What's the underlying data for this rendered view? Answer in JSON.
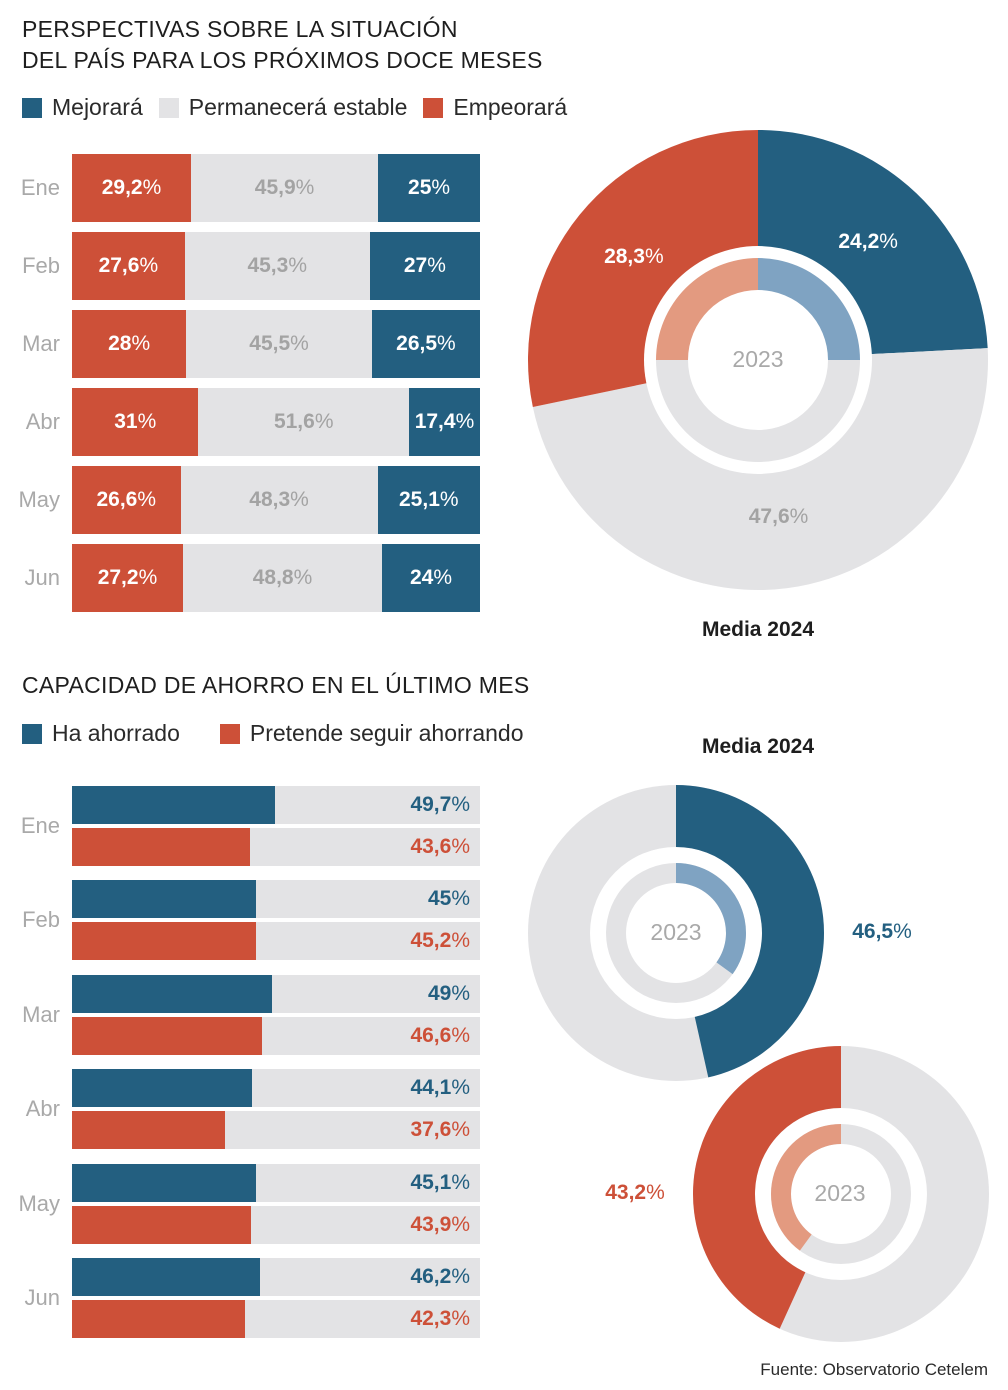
{
  "colors": {
    "blue": "#235f80",
    "red": "#cd5038",
    "grey": "#e3e3e5",
    "light_blue": "#7fa3c2",
    "light_red": "#e39a80",
    "label_grey": "#a3a3a3"
  },
  "section1": {
    "title_line1": "PERSPECTIVAS SOBRE LA SITUACIÓN",
    "title_line2": "DEL PAÍS PARA LOS PRÓXIMOS DOCE MESES",
    "legend": [
      "Mejorará",
      "Permanecerá estable",
      "Empeorará"
    ],
    "donut_media_label": "Media 2024",
    "donut_center_label": "2023"
  },
  "section2": {
    "title": "CAPACIDAD DE AHORRO EN EL ÚLTIMO MES",
    "legend": [
      "Ha ahorrado",
      "Pretende seguir ahorrando"
    ],
    "donut_media_label": "Media 2024",
    "donut_center_label": "2023"
  },
  "source": "Fuente: Observatorio Cetelem",
  "chart_data": [
    {
      "type": "bar",
      "stacked": true,
      "orientation": "horizontal",
      "title": "PERSPECTIVAS SOBRE LA SITUACIÓN DEL PAÍS PARA LOS PRÓXIMOS DOCE MESES",
      "categories": [
        "Ene",
        "Feb",
        "Mar",
        "Abr",
        "May",
        "Jun"
      ],
      "series": [
        {
          "name": "Empeorará",
          "values": [
            29.2,
            27.6,
            28,
            31,
            26.6,
            27.2
          ],
          "labels": [
            "29,2",
            "27,6",
            "28",
            "31",
            "26,6",
            "27,2"
          ]
        },
        {
          "name": "Permanecerá estable",
          "values": [
            45.9,
            45.3,
            45.5,
            51.6,
            48.3,
            48.8
          ],
          "labels": [
            "45,9",
            "45,3",
            "45,5",
            "51,6",
            "48,3",
            "48,8"
          ]
        },
        {
          "name": "Mejorará",
          "values": [
            25,
            27,
            26.5,
            17.4,
            25.1,
            24
          ],
          "labels": [
            "25",
            "27",
            "26,5",
            "17,4",
            "25,1",
            "24"
          ]
        }
      ],
      "unit": "%"
    },
    {
      "type": "pie",
      "title": "Media 2024",
      "slices": [
        {
          "name": "Mejorará",
          "value": 24.2,
          "label": "24,2"
        },
        {
          "name": "Permanecerá estable",
          "value": 47.6,
          "label": "47,6"
        },
        {
          "name": "Empeorará",
          "value": 28.3,
          "label": "28,3"
        }
      ],
      "inner_ring_2023": [
        {
          "name": "Mejorará",
          "value": 25
        },
        {
          "name": "Permanecerá estable",
          "value": 50
        },
        {
          "name": "Empeorará",
          "value": 25
        }
      ],
      "unit": "%"
    },
    {
      "type": "bar",
      "orientation": "horizontal",
      "title": "CAPACIDAD DE AHORRO EN EL ÚLTIMO MES",
      "categories": [
        "Ene",
        "Feb",
        "Mar",
        "Abr",
        "May",
        "Jun"
      ],
      "series": [
        {
          "name": "Ha ahorrado",
          "values": [
            49.7,
            45,
            49,
            44.1,
            45.1,
            46.2
          ],
          "labels": [
            "49,7",
            "45",
            "49",
            "44,1",
            "45,1",
            "46,2"
          ]
        },
        {
          "name": "Pretende seguir ahorrando",
          "values": [
            43.6,
            45.2,
            46.6,
            37.6,
            43.9,
            42.3
          ],
          "labels": [
            "43,6",
            "45,2",
            "46,6",
            "37,6",
            "43,9",
            "42,3"
          ]
        }
      ],
      "xlim": [
        0,
        100
      ],
      "unit": "%"
    },
    {
      "type": "pie",
      "title": "Media 2024",
      "series_name": "Ha ahorrado",
      "value": 46.5,
      "label": "46,5",
      "inner_ring_2023": 35,
      "unit": "%"
    },
    {
      "type": "pie",
      "series_name": "Pretende seguir ahorrando",
      "value": 43.2,
      "label": "43,2",
      "inner_ring_2023": 40,
      "unit": "%"
    }
  ]
}
